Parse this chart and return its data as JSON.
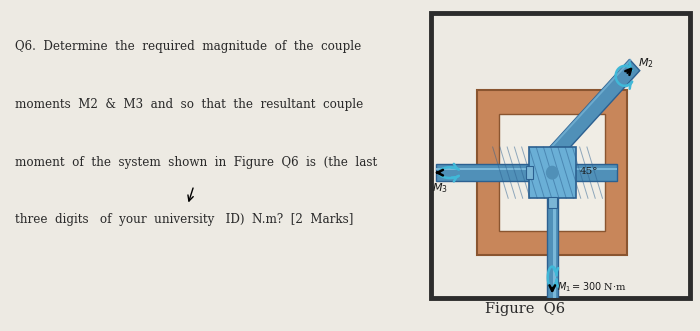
{
  "bg_color": "#edeae3",
  "text_color": "#2a2a2a",
  "question_text_lines": [
    "Q6.  Determine  the  required  magnitude  of  the  couple",
    "moments  M2  &  M3  and  so  that  the  resultant  couple",
    "moment  of  the  system  shown  in  Figure  Q6  is  (the  last",
    "three  digits   of  your  university   ID)  N.m?  [2  Marks]"
  ],
  "figure_caption": "Figure  Q6",
  "outer_border_color": "#2c2c2c",
  "panel_bg": "#f0ede5",
  "shaft_color_light": "#7ab8d9",
  "shaft_color_mid": "#5090b8",
  "shaft_color_dark": "#2c6090",
  "box_fill": "#c8865a",
  "box_edge": "#8a5530",
  "moment_arc_color": "#40b8d8",
  "label_color": "#1a1a1a",
  "M1_label": "$M_1 = 300$ N·m",
  "M2_label": "$M_2$",
  "M3_label": "$M_3$",
  "angle_label": "45°",
  "fig_width": 7.0,
  "fig_height": 3.31
}
